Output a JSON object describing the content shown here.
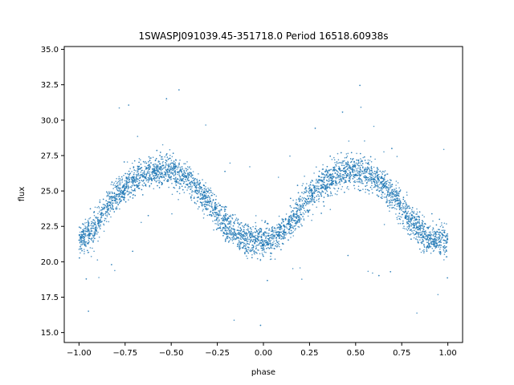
{
  "chart_data": {
    "type": "scatter",
    "title": "1SWASPJ091039.45-351718.0 Period 16518.60938s",
    "xlabel": "phase",
    "ylabel": "flux",
    "xlim": [
      -1.08,
      1.08
    ],
    "ylim": [
      14.3,
      35.2
    ],
    "xticks": [
      -1.0,
      -0.75,
      -0.5,
      -0.25,
      0.0,
      0.25,
      0.5,
      0.75,
      1.0
    ],
    "xtick_labels": [
      "−1.00",
      "−0.75",
      "−0.50",
      "−0.25",
      "0.00",
      "0.25",
      "0.50",
      "0.75",
      "1.00"
    ],
    "yticks": [
      15.0,
      17.5,
      20.0,
      22.5,
      25.0,
      27.5,
      30.0,
      32.5,
      35.0
    ],
    "ytick_labels": [
      "15.0",
      "17.5",
      "20.0",
      "22.5",
      "25.0",
      "27.5",
      "30.0",
      "32.5",
      "35.0"
    ],
    "grid": false,
    "point_color": "#1f77b4",
    "series": [
      {
        "x": [
          -1.0,
          -0.95,
          -0.9,
          -0.85,
          -0.8,
          -0.75,
          -0.7,
          -0.65,
          -0.6,
          -0.55,
          -0.5,
          -0.45,
          -0.4,
          -0.35,
          -0.3,
          -0.25,
          -0.2,
          -0.15,
          -0.1,
          -0.05,
          0.0,
          0.05,
          0.1,
          0.15,
          0.2,
          0.25,
          0.3,
          0.35,
          0.4,
          0.45,
          0.5,
          0.55,
          0.6,
          0.65,
          0.7,
          0.75,
          0.8,
          0.85,
          0.9,
          0.95,
          1.0
        ],
        "y": [
          21.5,
          21.9,
          22.8,
          23.8,
          24.6,
          25.3,
          25.8,
          26.2,
          26.4,
          26.5,
          26.4,
          26.1,
          25.7,
          25.0,
          24.2,
          23.3,
          22.5,
          21.9,
          21.6,
          21.5,
          21.5,
          21.6,
          22.0,
          22.8,
          23.7,
          24.6,
          25.3,
          25.8,
          26.2,
          26.4,
          26.5,
          26.3,
          25.9,
          25.4,
          24.7,
          23.8,
          22.9,
          22.1,
          21.6,
          21.5,
          21.5
        ]
      }
    ]
  }
}
